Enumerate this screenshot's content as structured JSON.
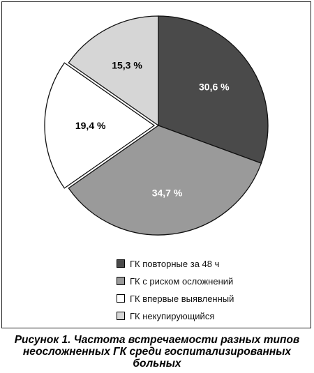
{
  "chart_data": {
    "type": "pie",
    "slices": [
      {
        "label": "ГК повторные за 48 ч",
        "value": 30.6,
        "value_label": "30,6 %",
        "color": "#4a4a4a",
        "text_color": "#ffffff"
      },
      {
        "label": "ГК с риском осложнений",
        "value": 34.7,
        "value_label": "34,7 %",
        "color": "#9a9a9a",
        "text_color": "#ffffff"
      },
      {
        "label": "ГК впервые выявленный",
        "value": 19.4,
        "value_label": "19,4 %",
        "color": "#ffffff",
        "text_color": "#000000"
      },
      {
        "label": "ГК некупирующийся",
        "value": 15.3,
        "value_label": "15,3 %",
        "color": "#d6d6d6",
        "text_color": "#000000"
      }
    ],
    "legend_position": "bottom-right"
  },
  "caption": {
    "line1": "Рисунок 1. Частота встречаемости разных типов",
    "line2": "неосложненных ГК среди госпитализированных",
    "line3": "больных"
  }
}
